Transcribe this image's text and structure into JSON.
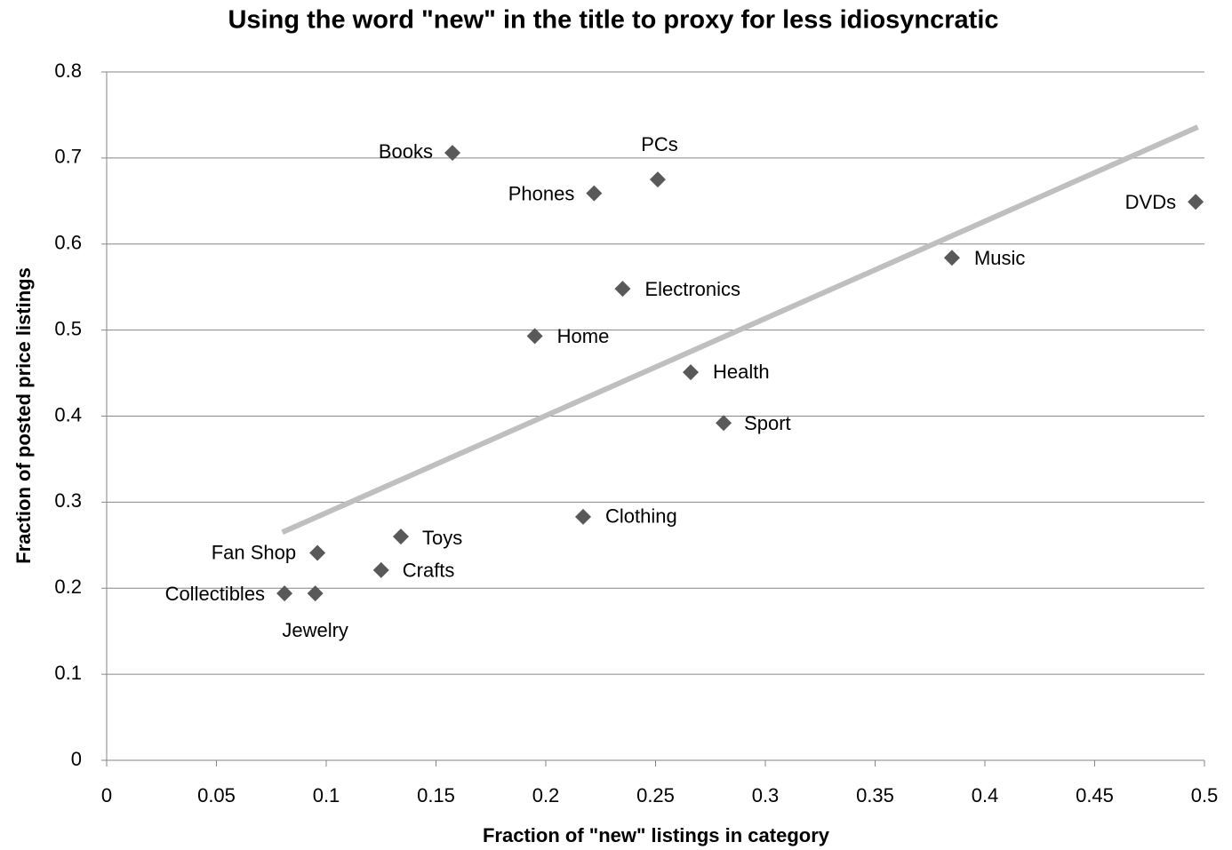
{
  "chart_data": {
    "type": "scatter",
    "title": "Using the word \"new\" in the title to proxy for less idiosyncratic",
    "x_label": "Fraction of \"new\" listings in category",
    "y_label": "Fraction of posted price listings",
    "labels": [
      "Books",
      "PCs",
      "Phones",
      "DVDs",
      "Music",
      "Electronics",
      "Home",
      "Health",
      "Sport",
      "Clothing",
      "Toys",
      "Fan Shop",
      "Crafts",
      "Collectibles",
      "Jewelry"
    ],
    "x": [
      0.1575,
      0.251,
      0.222,
      0.496,
      0.385,
      0.235,
      0.195,
      0.266,
      0.281,
      0.217,
      0.134,
      0.096,
      0.125,
      0.081,
      0.095
    ],
    "y": [
      0.706,
      0.675,
      0.659,
      0.649,
      0.584,
      0.548,
      0.493,
      0.451,
      0.392,
      0.283,
      0.26,
      0.241,
      0.221,
      0.194,
      0.194
    ],
    "color": "#595959",
    "trendline": {
      "x": [
        0.08,
        0.497
      ],
      "y": [
        0.265,
        0.736
      ],
      "color": "#bfbfbf"
    },
    "xlim": [
      0,
      0.5
    ],
    "ylim": [
      0,
      0.8
    ],
    "xticks": [
      0,
      0.05,
      0.1,
      0.15,
      0.2,
      0.25,
      0.3,
      0.35,
      0.4,
      0.45,
      0.5
    ],
    "yticks": [
      0,
      0.1,
      0.2,
      0.3,
      0.4,
      0.5,
      0.6,
      0.7,
      0.8
    ],
    "grid": true
  }
}
